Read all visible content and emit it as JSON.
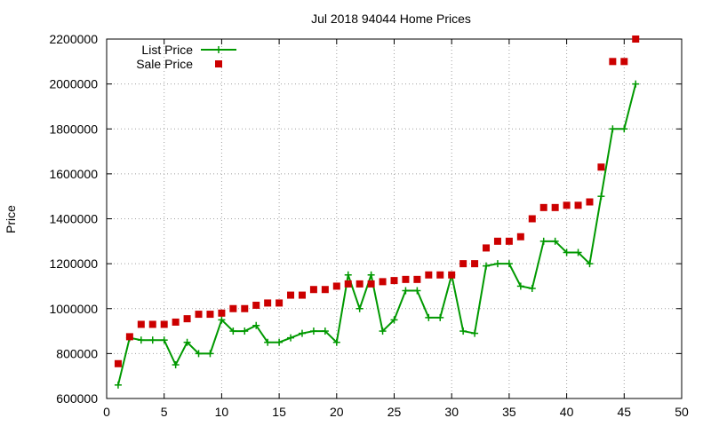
{
  "chart_data": {
    "type": "line",
    "title": "Jul 2018 94044 Home Prices",
    "xlabel": "",
    "ylabel": "Price",
    "xlim": [
      0,
      50
    ],
    "ylim": [
      600000,
      2200000
    ],
    "xticks": [
      "0",
      "5",
      "10",
      "15",
      "20",
      "25",
      "30",
      "35",
      "40",
      "45",
      "50"
    ],
    "yticks": [
      "600000",
      "800000",
      "1000000",
      "1200000",
      "1400000",
      "1600000",
      "1800000",
      "2000000",
      "2200000"
    ],
    "grid": true,
    "legend_position": "top-left",
    "series": [
      {
        "name": "List Price",
        "style": "line-with-plus-markers",
        "color": "#009900",
        "x": [
          1,
          2,
          3,
          4,
          5,
          6,
          7,
          8,
          9,
          10,
          11,
          12,
          13,
          14,
          15,
          16,
          17,
          18,
          19,
          20,
          21,
          22,
          23,
          24,
          25,
          26,
          27,
          28,
          29,
          30,
          31,
          32,
          33,
          34,
          35,
          36,
          37,
          38,
          39,
          40,
          41,
          42,
          43,
          44,
          45,
          46
        ],
        "y": [
          660000,
          870000,
          860000,
          860000,
          860000,
          750000,
          850000,
          800000,
          800000,
          950000,
          900000,
          900000,
          925000,
          850000,
          850000,
          870000,
          890000,
          900000,
          900000,
          850000,
          1150000,
          1000000,
          1150000,
          900000,
          950000,
          1080000,
          1080000,
          960000,
          960000,
          1150000,
          900000,
          890000,
          1190000,
          1200000,
          1200000,
          1100000,
          1090000,
          1300000,
          1300000,
          1250000,
          1250000,
          1200000,
          1500000,
          1800000,
          1800000,
          2000000
        ]
      },
      {
        "name": "Sale Price",
        "style": "square-markers",
        "color": "#cc0000",
        "x": [
          1,
          2,
          3,
          4,
          5,
          6,
          7,
          8,
          9,
          10,
          11,
          12,
          13,
          14,
          15,
          16,
          17,
          18,
          19,
          20,
          21,
          22,
          23,
          24,
          25,
          26,
          27,
          28,
          29,
          30,
          31,
          32,
          33,
          34,
          35,
          36,
          37,
          38,
          39,
          40,
          41,
          42,
          43,
          44,
          45,
          46
        ],
        "y": [
          755000,
          875000,
          930000,
          930000,
          930000,
          940000,
          955000,
          975000,
          975000,
          980000,
          1000000,
          1000000,
          1015000,
          1025000,
          1025000,
          1060000,
          1060000,
          1085000,
          1085000,
          1100000,
          1110000,
          1110000,
          1110000,
          1120000,
          1125000,
          1130000,
          1130000,
          1150000,
          1150000,
          1150000,
          1200000,
          1200000,
          1270000,
          1300000,
          1300000,
          1320000,
          1400000,
          1450000,
          1450000,
          1460000,
          1460000,
          1475000,
          1630000,
          2100000,
          2100000,
          2200000
        ]
      }
    ]
  }
}
